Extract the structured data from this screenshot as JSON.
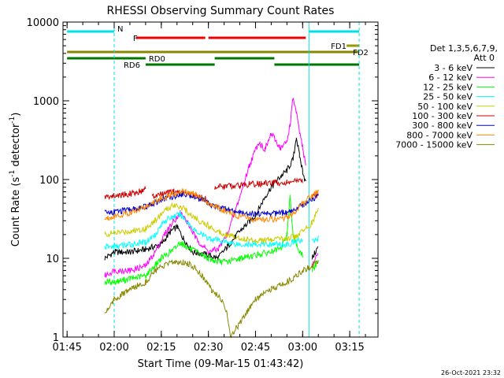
{
  "chart_data": {
    "type": "line",
    "title": "RHESSI Observing Summary Count Rates",
    "xlabel": "Start Time (09-Mar-15 01:43:42)",
    "ylabel": "Count Rate (s",
    "ylabel_sup1": "-1",
    "ylabel_mid": " detector",
    "ylabel_sup2": "-1",
    "ylabel_end": ")",
    "y_scale": "log",
    "ylim": [
      1,
      10000
    ],
    "xlim": [
      "01:43:42",
      "03:24:00"
    ],
    "x_ticks": [
      "01:45",
      "02:00",
      "02:15",
      "02:30",
      "02:45",
      "03:00",
      "03:15"
    ],
    "y_ticks": [
      "1",
      "10",
      "100",
      "1000",
      "10000"
    ],
    "timestamp": "26-Oct-2021 23:32",
    "legend": {
      "placement": "right",
      "header_line1": "Det 1,3,5,6,7,9,",
      "header_line2": "Att 0"
    },
    "series": [
      {
        "name": "3 - 6 keV",
        "color": "#000000",
        "points": [
          [
            "01:56",
            null
          ],
          [
            "01:57",
            10
          ],
          [
            "02:00",
            12
          ],
          [
            "02:05",
            12
          ],
          [
            "02:10",
            13
          ],
          [
            "02:15",
            15
          ],
          [
            "02:18",
            22
          ],
          [
            "02:20",
            25
          ],
          [
            "02:22",
            18
          ],
          [
            "02:25",
            12
          ],
          [
            "02:30",
            11
          ],
          [
            "02:33",
            10
          ],
          [
            "02:36",
            14
          ],
          [
            "02:40",
            22
          ],
          [
            "02:45",
            35
          ],
          [
            "02:48",
            60
          ],
          [
            "02:50",
            80
          ],
          [
            "02:53",
            110
          ],
          [
            "02:55",
            130
          ],
          [
            "02:57",
            180
          ],
          [
            "02:58",
            350
          ],
          [
            "02:59",
            200
          ],
          [
            "03:00",
            130
          ],
          [
            "03:01",
            90
          ],
          [
            "03:02",
            null
          ],
          [
            "03:03",
            10
          ],
          [
            "03:05",
            14
          ]
        ]
      },
      {
        "name": "6 - 12 keV",
        "color": "#ff00ff",
        "points": [
          [
            "01:56",
            null
          ],
          [
            "01:57",
            6
          ],
          [
            "02:00",
            7
          ],
          [
            "02:05",
            7
          ],
          [
            "02:10",
            8
          ],
          [
            "02:13",
            12
          ],
          [
            "02:16",
            20
          ],
          [
            "02:19",
            30
          ],
          [
            "02:21",
            38
          ],
          [
            "02:23",
            30
          ],
          [
            "02:26",
            18
          ],
          [
            "02:30",
            12
          ],
          [
            "02:33",
            13
          ],
          [
            "02:36",
            20
          ],
          [
            "02:40",
            60
          ],
          [
            "02:43",
            150
          ],
          [
            "02:46",
            300
          ],
          [
            "02:48",
            240
          ],
          [
            "02:50",
            380
          ],
          [
            "02:53",
            250
          ],
          [
            "02:55",
            300
          ],
          [
            "02:56",
            500
          ],
          [
            "02:57",
            1100
          ],
          [
            "02:58",
            700
          ],
          [
            "02:59",
            400
          ],
          [
            "03:00",
            250
          ],
          [
            "03:01",
            150
          ],
          [
            "03:02",
            null
          ],
          [
            "03:03",
            8
          ],
          [
            "03:05",
            12
          ]
        ]
      },
      {
        "name": "12 - 25 keV",
        "color": "#00ff00",
        "points": [
          [
            "01:56",
            null
          ],
          [
            "01:57",
            5
          ],
          [
            "02:00",
            5
          ],
          [
            "02:05",
            5.5
          ],
          [
            "02:10",
            6
          ],
          [
            "02:15",
            10
          ],
          [
            "02:19",
            13
          ],
          [
            "02:21",
            16
          ],
          [
            "02:23",
            14
          ],
          [
            "02:26",
            12
          ],
          [
            "02:30",
            10
          ],
          [
            "02:33",
            9
          ],
          [
            "02:36",
            9
          ],
          [
            "02:40",
            10
          ],
          [
            "02:45",
            11
          ],
          [
            "02:50",
            12
          ],
          [
            "02:53",
            13
          ],
          [
            "02:55",
            20
          ],
          [
            "02:56",
            60
          ],
          [
            "02:57",
            20
          ],
          [
            "02:59",
            12
          ],
          [
            "03:00",
            11
          ],
          [
            "03:02",
            null
          ],
          [
            "03:03",
            7
          ],
          [
            "03:05",
            9
          ]
        ]
      },
      {
        "name": "25 - 50 keV",
        "color": "#00ffff",
        "points": [
          [
            "01:56",
            null
          ],
          [
            "01:57",
            14
          ],
          [
            "02:00",
            14
          ],
          [
            "02:05",
            15
          ],
          [
            "02:10",
            16
          ],
          [
            "02:13",
            20
          ],
          [
            "02:16",
            30
          ],
          [
            "02:19",
            34
          ],
          [
            "02:21",
            36
          ],
          [
            "02:23",
            30
          ],
          [
            "02:26",
            22
          ],
          [
            "02:30",
            18
          ],
          [
            "02:33",
            17
          ],
          [
            "02:36",
            16
          ],
          [
            "02:40",
            15
          ],
          [
            "02:45",
            15
          ],
          [
            "02:50",
            15
          ],
          [
            "02:53",
            15
          ],
          [
            "02:55",
            15
          ],
          [
            "02:57",
            16
          ],
          [
            "02:59",
            17
          ],
          [
            "03:00",
            17
          ],
          [
            "03:02",
            null
          ],
          [
            "03:03",
            16
          ],
          [
            "03:05",
            18
          ]
        ]
      },
      {
        "name": "50 - 100 keV",
        "color": "#cccc00",
        "points": [
          [
            "01:56",
            null
          ],
          [
            "01:57",
            20
          ],
          [
            "02:00",
            21
          ],
          [
            "02:05",
            22
          ],
          [
            "02:10",
            24
          ],
          [
            "02:13",
            30
          ],
          [
            "02:16",
            40
          ],
          [
            "02:19",
            48
          ],
          [
            "02:21",
            46
          ],
          [
            "02:23",
            40
          ],
          [
            "02:26",
            32
          ],
          [
            "02:30",
            26
          ],
          [
            "02:33",
            22
          ],
          [
            "02:36",
            20
          ],
          [
            "02:40",
            18
          ],
          [
            "02:45",
            17
          ],
          [
            "02:50",
            17
          ],
          [
            "02:55",
            18
          ],
          [
            "02:58",
            19
          ],
          [
            "03:00",
            22
          ],
          [
            "03:03",
            28
          ],
          [
            "03:05",
            42
          ]
        ]
      },
      {
        "name": "100 - 300 keV",
        "color": "#cc0000",
        "points": [
          [
            "01:56",
            null
          ],
          [
            "01:57",
            60
          ],
          [
            "02:00",
            62
          ],
          [
            "02:05",
            66
          ],
          [
            "02:09",
            72
          ],
          [
            "02:10",
            80
          ],
          [
            "02:11",
            null
          ],
          [
            "02:12",
            60
          ],
          [
            "02:15",
            65
          ],
          [
            "02:19",
            70
          ],
          [
            "02:22",
            68
          ],
          [
            "02:26",
            62
          ],
          [
            "02:30",
            55
          ],
          [
            "02:31",
            null
          ],
          [
            "02:32",
            80
          ],
          [
            "02:35",
            82
          ],
          [
            "02:40",
            85
          ],
          [
            "02:45",
            88
          ],
          [
            "02:50",
            90
          ],
          [
            "02:55",
            92
          ],
          [
            "02:58",
            95
          ],
          [
            "03:00",
            98
          ],
          [
            "03:02",
            null
          ],
          [
            "03:03",
            58
          ],
          [
            "03:05",
            64
          ]
        ]
      },
      {
        "name": "300 - 800 keV",
        "color": "#0000cc",
        "points": [
          [
            "01:56",
            null
          ],
          [
            "01:57",
            38
          ],
          [
            "02:00",
            39
          ],
          [
            "02:05",
            41
          ],
          [
            "02:10",
            45
          ],
          [
            "02:15",
            55
          ],
          [
            "02:19",
            62
          ],
          [
            "02:22",
            66
          ],
          [
            "02:25",
            62
          ],
          [
            "02:28",
            55
          ],
          [
            "02:31",
            48
          ],
          [
            "02:35",
            42
          ],
          [
            "02:40",
            38
          ],
          [
            "02:45",
            37
          ],
          [
            "02:50",
            37
          ],
          [
            "02:55",
            38
          ],
          [
            "02:58",
            42
          ],
          [
            "03:00",
            48
          ],
          [
            "03:03",
            56
          ],
          [
            "03:05",
            62
          ]
        ]
      },
      {
        "name": "800 - 7000 keV",
        "color": "#ff8800",
        "points": [
          [
            "01:56",
            null
          ],
          [
            "01:57",
            32
          ],
          [
            "02:00",
            34
          ],
          [
            "02:05",
            38
          ],
          [
            "02:10",
            45
          ],
          [
            "02:15",
            58
          ],
          [
            "02:19",
            66
          ],
          [
            "02:22",
            70
          ],
          [
            "02:25",
            66
          ],
          [
            "02:28",
            58
          ],
          [
            "02:31",
            48
          ],
          [
            "02:35",
            40
          ],
          [
            "02:40",
            34
          ],
          [
            "02:45",
            31
          ],
          [
            "02:50",
            31
          ],
          [
            "02:55",
            33
          ],
          [
            "02:58",
            40
          ],
          [
            "03:00",
            50
          ],
          [
            "03:03",
            62
          ],
          [
            "03:05",
            70
          ]
        ]
      },
      {
        "name": "7000 - 15000 keV",
        "color": "#888800",
        "points": [
          [
            "01:56",
            null
          ],
          [
            "01:57",
            2
          ],
          [
            "02:00",
            3
          ],
          [
            "02:05",
            4
          ],
          [
            "02:10",
            5
          ],
          [
            "02:13",
            7
          ],
          [
            "02:16",
            8
          ],
          [
            "02:19",
            9
          ],
          [
            "02:22",
            9
          ],
          [
            "02:25",
            8
          ],
          [
            "02:28",
            6
          ],
          [
            "02:31",
            4
          ],
          [
            "02:34",
            3
          ],
          [
            "02:36",
            2
          ],
          [
            "02:37",
            1
          ],
          [
            "02:40",
            1.5
          ],
          [
            "02:45",
            3
          ],
          [
            "02:50",
            4
          ],
          [
            "02:55",
            5
          ],
          [
            "02:58",
            6
          ],
          [
            "03:00",
            7
          ],
          [
            "03:03",
            8
          ],
          [
            "03:05",
            9
          ]
        ]
      }
    ],
    "flags": [
      {
        "label": "N",
        "color": "#00e0e0",
        "line_width": 3,
        "label_at": "02:01",
        "segments": [
          [
            "01:45",
            "02:00"
          ],
          [
            "03:02",
            "03:18"
          ]
        ]
      },
      {
        "label": "F",
        "color": "#ee0000",
        "line_width": 3,
        "label_at": "02:06",
        "segments": [
          [
            "02:07",
            "02:29"
          ],
          [
            "02:30",
            "03:01"
          ]
        ]
      },
      {
        "label": "FD1",
        "color": "#999900",
        "line_width": 3,
        "label_at": "03:09",
        "segments": [
          [
            "03:14",
            "03:18"
          ]
        ]
      },
      {
        "label": "FD2",
        "color": "#888800",
        "line_width": 3,
        "label_at": "03:16",
        "segments": [
          [
            "01:45",
            "03:18"
          ]
        ]
      },
      {
        "label": "RD0",
        "color": "#007700",
        "line_width": 3,
        "label_at": "02:11",
        "segments": [
          [
            "01:45",
            "02:10"
          ],
          [
            "02:32",
            "02:51"
          ]
        ]
      },
      {
        "label": "RD6",
        "color": "#007700",
        "line_width": 3,
        "label_at": "02:03",
        "segments": [
          [
            "02:10",
            "02:32"
          ],
          [
            "02:51",
            "03:18"
          ]
        ]
      }
    ],
    "vlines": [
      {
        "time": "01:43:42",
        "color": "#00e0e0",
        "style": "solid"
      },
      {
        "time": "02:00",
        "color": "#00e0e0",
        "style": "dashed"
      },
      {
        "time": "03:02",
        "color": "#00e0e0",
        "style": "solid"
      },
      {
        "time": "03:18",
        "color": "#00e0e0",
        "style": "dashed"
      }
    ]
  }
}
